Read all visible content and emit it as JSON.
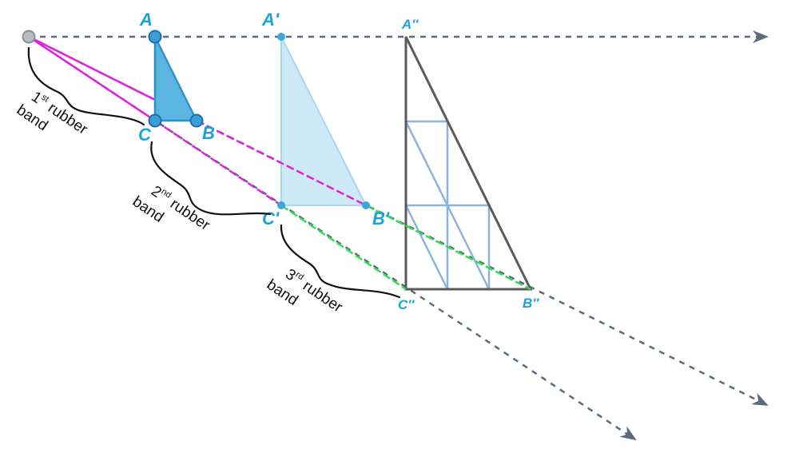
{
  "colors": {
    "ray": "#5a6b7d",
    "band": "#e020e0",
    "band_third": "#33dd55",
    "label": "#1aa3d8",
    "triangle_fill": "#5bb5e0",
    "triangle_image_fill": "#cde9f6",
    "final_triangle": "#5a5a5a",
    "grid": "#8ab4dd",
    "accent_edge": "#c8602a",
    "brace": "#111111"
  },
  "vertices": {
    "A": "A",
    "B": "B",
    "C": "C",
    "A1": "A'",
    "B1": "B'",
    "C1": "C'",
    "A2": "A''",
    "B2": "B''",
    "C2": "C''"
  },
  "bands": [
    {
      "num": "1",
      "sup": "st",
      "word": "rubber",
      "line2": "band"
    },
    {
      "num": "2",
      "sup": "nd",
      "word": "rubber",
      "line2": "band"
    },
    {
      "num": "3",
      "sup": "rd",
      "word": "rubber",
      "line2": "band"
    }
  ]
}
